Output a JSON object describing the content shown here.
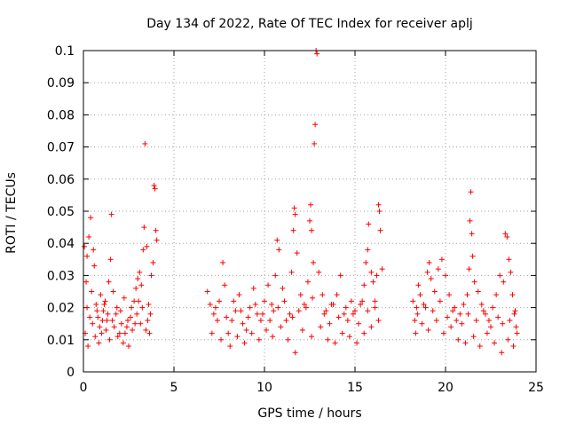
{
  "chart_data": {
    "type": "scatter",
    "title": "Day 134 of 2022, Rate Of TEC Index for receiver aplj",
    "xlabel": "GPS time / hours",
    "ylabel": "ROTI / TECUs",
    "xlim": [
      0,
      25
    ],
    "ylim": [
      0,
      0.1
    ],
    "x_ticks": [
      "0",
      "5",
      "10",
      "15",
      "20",
      "25"
    ],
    "y_ticks": [
      "0",
      "0.01",
      "0.02",
      "0.03",
      "0.04",
      "0.05",
      "0.06",
      "0.07",
      "0.08",
      "0.09",
      "0.1"
    ],
    "grid": true,
    "marker": "+",
    "series_color": "#ff0000",
    "series": [
      {
        "points": [
          [
            0.05,
            0.039
          ],
          [
            0.15,
            0.028
          ],
          [
            0.2,
            0.036
          ],
          [
            0.3,
            0.042
          ],
          [
            0.4,
            0.048
          ],
          [
            0.45,
            0.025
          ],
          [
            0.55,
            0.038
          ],
          [
            0.6,
            0.033
          ],
          [
            0.7,
            0.021
          ],
          [
            0.8,
            0.017
          ],
          [
            0.9,
            0.014
          ],
          [
            1.0,
            0.012
          ],
          [
            1.1,
            0.019
          ],
          [
            1.2,
            0.022
          ],
          [
            1.3,
            0.016
          ],
          [
            1.4,
            0.028
          ],
          [
            1.5,
            0.035
          ],
          [
            1.55,
            0.049
          ],
          [
            1.65,
            0.025
          ],
          [
            1.8,
            0.018
          ],
          [
            2.0,
            0.012
          ],
          [
            2.2,
            0.009
          ],
          [
            2.4,
            0.014
          ],
          [
            2.6,
            0.017
          ],
          [
            2.8,
            0.022
          ],
          [
            2.9,
            0.026
          ],
          [
            3.0,
            0.029
          ],
          [
            3.1,
            0.031
          ],
          [
            3.2,
            0.027
          ],
          [
            3.3,
            0.038
          ],
          [
            3.35,
            0.045
          ],
          [
            3.4,
            0.071
          ],
          [
            3.5,
            0.039
          ],
          [
            3.6,
            0.021
          ],
          [
            3.7,
            0.018
          ],
          [
            3.75,
            0.03
          ],
          [
            3.85,
            0.034
          ],
          [
            3.9,
            0.058
          ],
          [
            3.95,
            0.057
          ],
          [
            4.0,
            0.044
          ],
          [
            4.05,
            0.041
          ],
          [
            0.1,
            0.012
          ],
          [
            0.25,
            0.008
          ],
          [
            0.5,
            0.015
          ],
          [
            0.65,
            0.011
          ],
          [
            0.85,
            0.009
          ],
          [
            1.05,
            0.016
          ],
          [
            1.25,
            0.013
          ],
          [
            1.45,
            0.01
          ],
          [
            1.7,
            0.014
          ],
          [
            1.9,
            0.011
          ],
          [
            2.1,
            0.015
          ],
          [
            2.3,
            0.012
          ],
          [
            2.5,
            0.008
          ],
          [
            2.7,
            0.013
          ],
          [
            2.95,
            0.018
          ],
          [
            3.15,
            0.015
          ],
          [
            3.45,
            0.013
          ],
          [
            3.65,
            0.012
          ],
          [
            0.2,
            0.02
          ],
          [
            0.35,
            0.017
          ],
          [
            0.75,
            0.019
          ],
          [
            0.95,
            0.024
          ],
          [
            1.15,
            0.021
          ],
          [
            1.35,
            0.018
          ],
          [
            1.6,
            0.016
          ],
          [
            1.85,
            0.02
          ],
          [
            2.05,
            0.019
          ],
          [
            2.25,
            0.023
          ],
          [
            2.45,
            0.016
          ],
          [
            2.65,
            0.02
          ],
          [
            2.85,
            0.015
          ],
          [
            3.05,
            0.022
          ],
          [
            3.25,
            0.02
          ],
          [
            3.55,
            0.016
          ],
          [
            6.85,
            0.025
          ],
          [
            7.0,
            0.021
          ],
          [
            7.2,
            0.018
          ],
          [
            7.4,
            0.016
          ],
          [
            7.5,
            0.022
          ],
          [
            7.7,
            0.034
          ],
          [
            7.8,
            0.027
          ],
          [
            8.0,
            0.012
          ],
          [
            8.2,
            0.016
          ],
          [
            8.4,
            0.019
          ],
          [
            8.6,
            0.024
          ],
          [
            8.8,
            0.015
          ],
          [
            9.0,
            0.013
          ],
          [
            9.2,
            0.02
          ],
          [
            9.4,
            0.026
          ],
          [
            9.6,
            0.018
          ],
          [
            9.8,
            0.016
          ],
          [
            10.0,
            0.022
          ],
          [
            10.2,
            0.027
          ],
          [
            10.4,
            0.021
          ],
          [
            10.5,
            0.019
          ],
          [
            10.6,
            0.03
          ],
          [
            10.7,
            0.041
          ],
          [
            10.8,
            0.038
          ],
          [
            11.0,
            0.026
          ],
          [
            11.2,
            0.016
          ],
          [
            11.4,
            0.018
          ],
          [
            11.5,
            0.031
          ],
          [
            11.6,
            0.044
          ],
          [
            11.65,
            0.051
          ],
          [
            11.7,
            0.049
          ],
          [
            11.8,
            0.037
          ],
          [
            12.0,
            0.024
          ],
          [
            12.2,
            0.021
          ],
          [
            12.4,
            0.028
          ],
          [
            12.5,
            0.047
          ],
          [
            12.55,
            0.052
          ],
          [
            12.6,
            0.044
          ],
          [
            12.7,
            0.034
          ],
          [
            12.75,
            0.071
          ],
          [
            12.8,
            0.077
          ],
          [
            12.85,
            0.1
          ],
          [
            12.9,
            0.099
          ],
          [
            13.0,
            0.031
          ],
          [
            13.2,
            0.024
          ],
          [
            13.4,
            0.019
          ],
          [
            13.6,
            0.015
          ],
          [
            13.8,
            0.021
          ],
          [
            14.0,
            0.024
          ],
          [
            14.2,
            0.03
          ],
          [
            14.4,
            0.018
          ],
          [
            14.6,
            0.016
          ],
          [
            14.8,
            0.022
          ],
          [
            15.0,
            0.019
          ],
          [
            15.2,
            0.015
          ],
          [
            15.4,
            0.022
          ],
          [
            15.5,
            0.027
          ],
          [
            15.6,
            0.034
          ],
          [
            15.7,
            0.038
          ],
          [
            15.75,
            0.046
          ],
          [
            15.9,
            0.031
          ],
          [
            16.0,
            0.028
          ],
          [
            16.1,
            0.022
          ],
          [
            16.2,
            0.03
          ],
          [
            16.3,
            0.052
          ],
          [
            16.35,
            0.05
          ],
          [
            16.4,
            0.044
          ],
          [
            16.5,
            0.032
          ],
          [
            7.1,
            0.012
          ],
          [
            7.6,
            0.01
          ],
          [
            8.1,
            0.008
          ],
          [
            8.5,
            0.011
          ],
          [
            8.9,
            0.009
          ],
          [
            9.3,
            0.012
          ],
          [
            9.7,
            0.01
          ],
          [
            10.1,
            0.013
          ],
          [
            10.45,
            0.011
          ],
          [
            10.9,
            0.014
          ],
          [
            11.3,
            0.01
          ],
          [
            11.7,
            0.006
          ],
          [
            12.1,
            0.013
          ],
          [
            12.6,
            0.011
          ],
          [
            13.1,
            0.014
          ],
          [
            13.5,
            0.01
          ],
          [
            13.9,
            0.009
          ],
          [
            14.3,
            0.012
          ],
          [
            14.7,
            0.011
          ],
          [
            15.1,
            0.009
          ],
          [
            15.5,
            0.012
          ],
          [
            15.9,
            0.014
          ],
          [
            16.3,
            0.016
          ],
          [
            7.3,
            0.02
          ],
          [
            7.9,
            0.017
          ],
          [
            8.3,
            0.022
          ],
          [
            8.7,
            0.019
          ],
          [
            9.1,
            0.017
          ],
          [
            9.5,
            0.021
          ],
          [
            9.9,
            0.018
          ],
          [
            10.3,
            0.016
          ],
          [
            10.75,
            0.02
          ],
          [
            11.1,
            0.022
          ],
          [
            11.55,
            0.017
          ],
          [
            11.9,
            0.019
          ],
          [
            12.3,
            0.02
          ],
          [
            12.65,
            0.023
          ],
          [
            13.3,
            0.018
          ],
          [
            13.7,
            0.021
          ],
          [
            14.1,
            0.017
          ],
          [
            14.5,
            0.02
          ],
          [
            14.9,
            0.018
          ],
          [
            15.3,
            0.021
          ],
          [
            15.7,
            0.019
          ],
          [
            16.1,
            0.02
          ],
          [
            18.2,
            0.022
          ],
          [
            18.3,
            0.016
          ],
          [
            18.4,
            0.02
          ],
          [
            18.5,
            0.027
          ],
          [
            18.6,
            0.024
          ],
          [
            18.8,
            0.021
          ],
          [
            19.0,
            0.031
          ],
          [
            19.1,
            0.034
          ],
          [
            19.2,
            0.029
          ],
          [
            19.4,
            0.025
          ],
          [
            19.6,
            0.032
          ],
          [
            19.8,
            0.035
          ],
          [
            20.0,
            0.03
          ],
          [
            20.2,
            0.024
          ],
          [
            20.4,
            0.019
          ],
          [
            20.6,
            0.016
          ],
          [
            20.8,
            0.018
          ],
          [
            21.0,
            0.021
          ],
          [
            21.2,
            0.024
          ],
          [
            21.3,
            0.032
          ],
          [
            21.35,
            0.047
          ],
          [
            21.4,
            0.056
          ],
          [
            21.45,
            0.043
          ],
          [
            21.5,
            0.036
          ],
          [
            21.6,
            0.028
          ],
          [
            21.8,
            0.025
          ],
          [
            22.0,
            0.021
          ],
          [
            22.2,
            0.018
          ],
          [
            22.4,
            0.016
          ],
          [
            22.6,
            0.02
          ],
          [
            22.8,
            0.024
          ],
          [
            23.0,
            0.03
          ],
          [
            23.2,
            0.028
          ],
          [
            23.3,
            0.043
          ],
          [
            23.4,
            0.042
          ],
          [
            23.5,
            0.035
          ],
          [
            23.6,
            0.031
          ],
          [
            23.7,
            0.024
          ],
          [
            23.8,
            0.018
          ],
          [
            23.9,
            0.014
          ],
          [
            18.35,
            0.012
          ],
          [
            18.7,
            0.015
          ],
          [
            19.05,
            0.013
          ],
          [
            19.5,
            0.016
          ],
          [
            19.9,
            0.012
          ],
          [
            20.3,
            0.014
          ],
          [
            20.7,
            0.01
          ],
          [
            21.1,
            0.009
          ],
          [
            21.55,
            0.011
          ],
          [
            21.9,
            0.008
          ],
          [
            22.3,
            0.012
          ],
          [
            22.7,
            0.009
          ],
          [
            23.1,
            0.006
          ],
          [
            23.45,
            0.01
          ],
          [
            23.75,
            0.008
          ],
          [
            23.95,
            0.012
          ],
          [
            18.45,
            0.018
          ],
          [
            18.9,
            0.02
          ],
          [
            19.3,
            0.019
          ],
          [
            19.7,
            0.022
          ],
          [
            20.1,
            0.017
          ],
          [
            20.5,
            0.02
          ],
          [
            20.9,
            0.015
          ],
          [
            21.25,
            0.018
          ],
          [
            21.7,
            0.016
          ],
          [
            22.1,
            0.019
          ],
          [
            22.5,
            0.014
          ],
          [
            22.9,
            0.017
          ],
          [
            23.15,
            0.015
          ],
          [
            23.55,
            0.016
          ],
          [
            23.85,
            0.019
          ]
        ]
      }
    ]
  }
}
